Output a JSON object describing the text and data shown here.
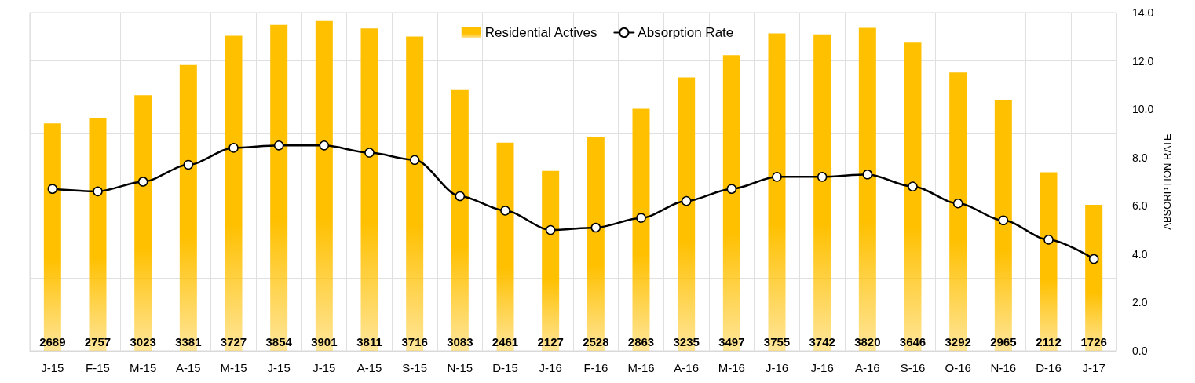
{
  "chart_data": {
    "type": "bar",
    "categories": [
      "J-15",
      "F-15",
      "M-15",
      "A-15",
      "M-15",
      "J-15",
      "J-15",
      "A-15",
      "S-15",
      "N-15",
      "D-15",
      "J-16",
      "F-16",
      "M-16",
      "A-16",
      "M-16",
      "J-16",
      "J-16",
      "A-16",
      "S-16",
      "O-16",
      "N-16",
      "D-16",
      "J-17"
    ],
    "series": [
      {
        "name": "Residential Actives",
        "color": "#ffc000",
        "values": [
          2689,
          2757,
          3023,
          3381,
          3727,
          3854,
          3901,
          3811,
          3716,
          3083,
          2461,
          2127,
          2528,
          2863,
          3235,
          3497,
          3755,
          3742,
          3820,
          3646,
          3292,
          2965,
          2112,
          1726
        ],
        "value_labels": [
          "2689",
          "2757",
          "3023",
          "3381",
          "3727",
          "3854",
          "3901",
          "3811",
          "3716",
          "3083",
          "2461",
          "2127",
          "2528",
          "2863",
          "3235",
          "3497",
          "3755",
          "3742",
          "3820",
          "3646",
          "3292",
          "2965",
          "2112",
          "1726"
        ]
      },
      {
        "name": "Absorption Rate",
        "type": "line",
        "axis": "y2",
        "color": "#000000",
        "values": [
          6.7,
          6.6,
          7.0,
          7.7,
          8.4,
          8.5,
          8.5,
          8.2,
          7.9,
          6.4,
          5.8,
          5.0,
          5.1,
          5.5,
          6.2,
          6.7,
          7.2,
          7.2,
          7.3,
          6.8,
          6.1,
          5.4,
          4.6,
          3.8
        ]
      }
    ],
    "y2label": "ABSORPTION RATE",
    "y2lim": [
      0,
      14
    ],
    "y2ticks": [
      {
        "value": 0,
        "label": "0.0"
      },
      {
        "value": 2,
        "label": "2.0"
      },
      {
        "value": 4,
        "label": "4.0"
      },
      {
        "value": 6,
        "label": "6.0"
      },
      {
        "value": 8,
        "label": "8.0"
      },
      {
        "value": 10,
        "label": "10.0"
      },
      {
        "value": 12,
        "label": "12.0"
      },
      {
        "value": 14,
        "label": "14.0"
      }
    ],
    "grid": true,
    "legend": "top",
    "marker": "circle",
    "line_style": "solid"
  }
}
